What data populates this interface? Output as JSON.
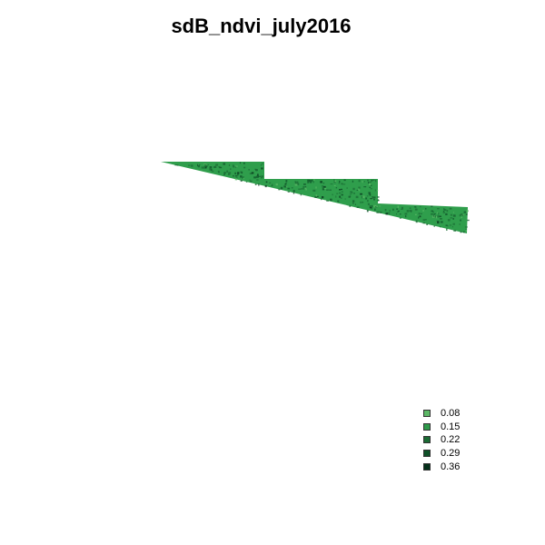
{
  "map": {
    "title": "sdB_ndvi_july2016",
    "base_color": "#2f9e4c",
    "legend": [
      {
        "label": "0.08",
        "color": "#5cb866"
      },
      {
        "label": "0.15",
        "color": "#2e9a4a"
      },
      {
        "label": "0.22",
        "color": "#1b6b34"
      },
      {
        "label": "0.29",
        "color": "#0f5128"
      },
      {
        "label": "0.36",
        "color": "#05301a"
      }
    ]
  }
}
